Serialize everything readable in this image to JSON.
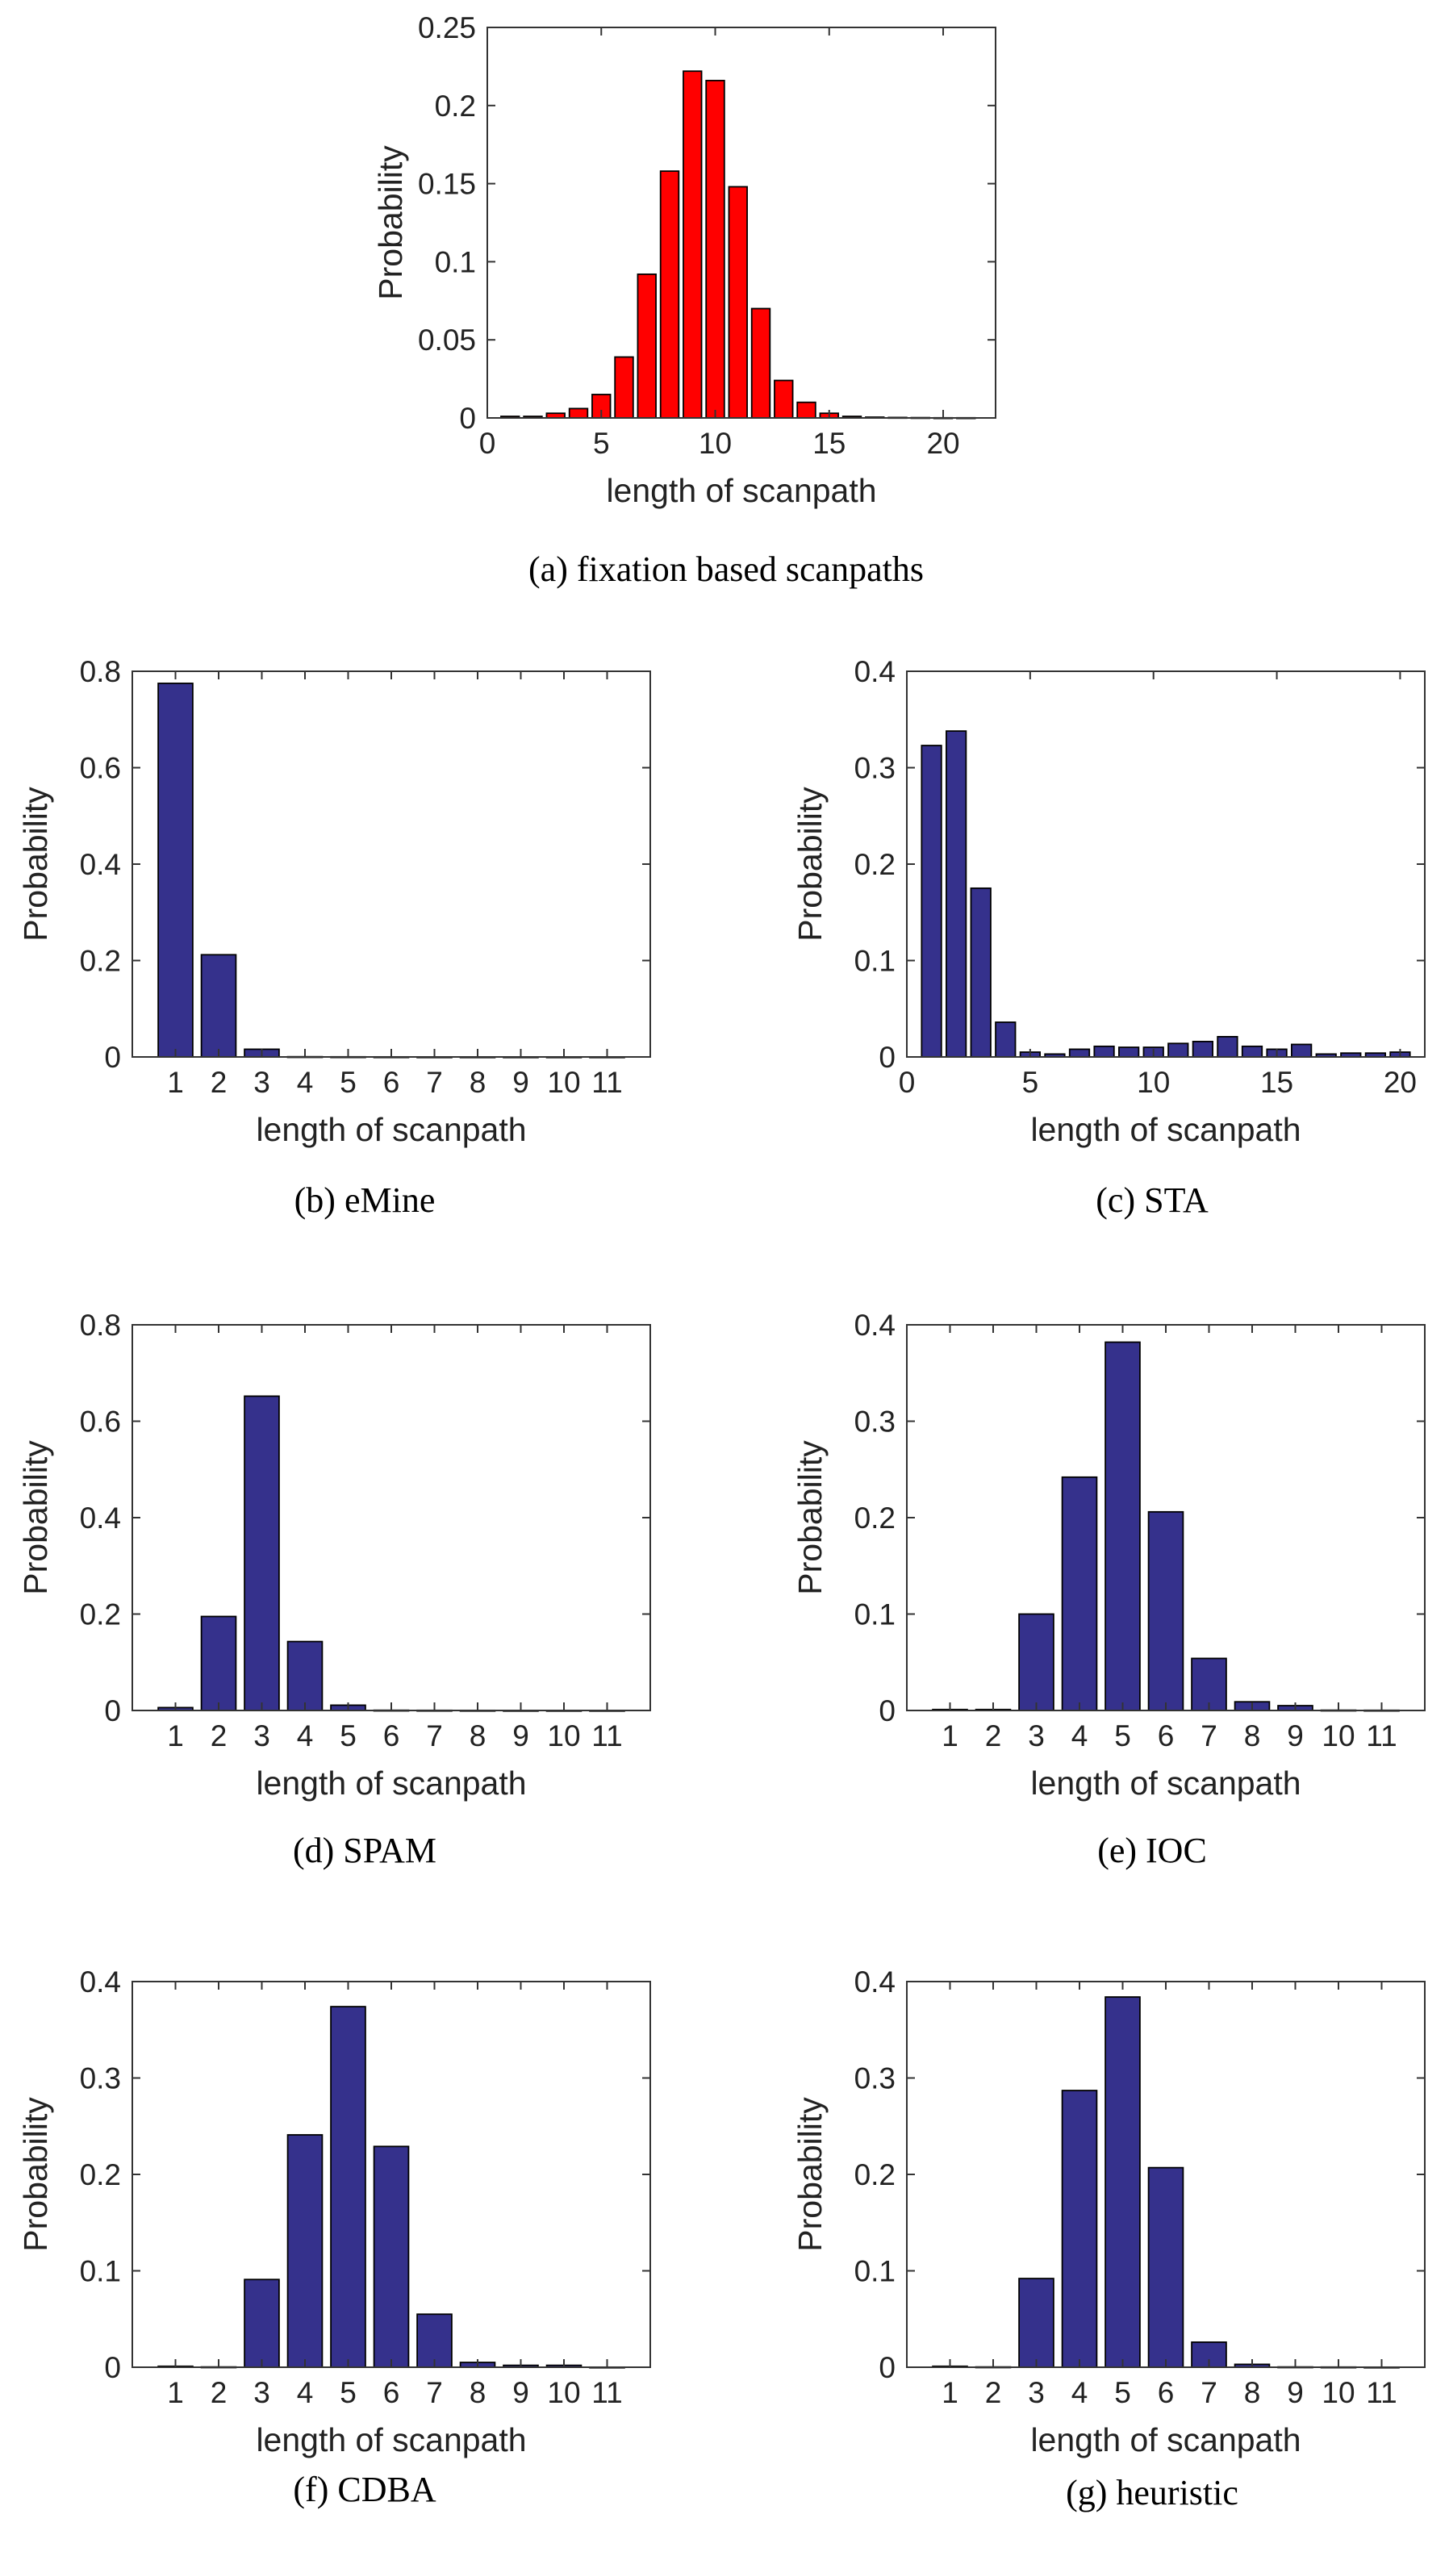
{
  "colors": {
    "red": "#ff0000",
    "navy": "#35318c",
    "edge": "#000000",
    "axis": "#333333"
  },
  "chart_data": [
    {
      "id": "a",
      "type": "bar",
      "caption": "(a) fixation based scanpaths",
      "xlabel": "length of scanpath",
      "ylabel": "Probability",
      "xlim": [
        0,
        22.3
      ],
      "ylim": [
        0,
        0.25
      ],
      "xticks": [
        0,
        5,
        10,
        15,
        20
      ],
      "yticks": [
        0,
        0.05,
        0.1,
        0.15,
        0.2,
        0.25
      ],
      "ytick_labels": [
        "0",
        "0.05",
        "0.1",
        "0.15",
        "0.2",
        "0.25"
      ],
      "bar_width": 0.8,
      "color": "red",
      "x": [
        1,
        2,
        3,
        4,
        5,
        6,
        7,
        8,
        9,
        10,
        11,
        12,
        13,
        14,
        15,
        16,
        17,
        18,
        19,
        20,
        21
      ],
      "values": [
        0.001,
        0.001,
        0.003,
        0.006,
        0.015,
        0.039,
        0.092,
        0.158,
        0.222,
        0.216,
        0.148,
        0.07,
        0.024,
        0.01,
        0.003,
        0.001,
        0.0005,
        0.0003,
        0.0002,
        0.0001,
        0.0001
      ]
    },
    {
      "id": "b",
      "type": "bar",
      "caption": "(b) eMine",
      "xlabel": "length of scanpath",
      "ylabel": "Probability",
      "xlim": [
        0,
        12
      ],
      "ylim": [
        0,
        0.8
      ],
      "xticks": [
        1,
        2,
        3,
        4,
        5,
        6,
        7,
        8,
        9,
        10,
        11
      ],
      "yticks": [
        0,
        0.2,
        0.4,
        0.6,
        0.8
      ],
      "ytick_labels": [
        "0",
        "0.2",
        "0.4",
        "0.6",
        "0.8"
      ],
      "bar_width": 0.8,
      "color": "navy",
      "x": [
        1,
        2,
        3,
        4,
        5,
        6,
        7,
        8,
        9,
        10,
        11
      ],
      "values": [
        0.775,
        0.212,
        0.016,
        0.0005,
        0.0003,
        0.0002,
        0.0001,
        0.0001,
        0.0001,
        0.0001,
        0.0001
      ]
    },
    {
      "id": "c",
      "type": "bar",
      "caption": "(c) STA",
      "xlabel": "length of scanpath",
      "ylabel": "Probability",
      "xlim": [
        0,
        21
      ],
      "ylim": [
        0,
        0.4
      ],
      "xticks": [
        0,
        5,
        10,
        15,
        20
      ],
      "yticks": [
        0,
        0.1,
        0.2,
        0.3,
        0.4
      ],
      "ytick_labels": [
        "0",
        "0.1",
        "0.2",
        "0.3",
        "0.4"
      ],
      "bar_width": 0.8,
      "color": "navy",
      "x": [
        1,
        2,
        3,
        4,
        5,
        6,
        7,
        8,
        9,
        10,
        11,
        12,
        13,
        14,
        15,
        16,
        17,
        18,
        19,
        20
      ],
      "values": [
        0.323,
        0.338,
        0.175,
        0.036,
        0.005,
        0.003,
        0.008,
        0.011,
        0.01,
        0.01,
        0.014,
        0.016,
        0.021,
        0.011,
        0.008,
        0.013,
        0.003,
        0.004,
        0.004,
        0.005
      ]
    },
    {
      "id": "d",
      "type": "bar",
      "caption": "(d) SPAM",
      "xlabel": "length of scanpath",
      "ylabel": "Probability",
      "xlim": [
        0,
        12
      ],
      "ylim": [
        0,
        0.8
      ],
      "xticks": [
        1,
        2,
        3,
        4,
        5,
        6,
        7,
        8,
        9,
        10,
        11
      ],
      "yticks": [
        0,
        0.2,
        0.4,
        0.6,
        0.8
      ],
      "ytick_labels": [
        "0",
        "0.2",
        "0.4",
        "0.6",
        "0.8"
      ],
      "bar_width": 0.8,
      "color": "navy",
      "x": [
        1,
        2,
        3,
        4,
        5,
        6,
        7,
        8,
        9,
        10,
        11
      ],
      "values": [
        0.006,
        0.195,
        0.652,
        0.143,
        0.011,
        0.0005,
        0.0003,
        0.0002,
        0.0001,
        0.0001,
        0.0001
      ]
    },
    {
      "id": "e",
      "type": "bar",
      "caption": "(e) IOC",
      "xlabel": "length of scanpath",
      "ylabel": "Probability",
      "xlim": [
        0,
        12
      ],
      "ylim": [
        0,
        0.4
      ],
      "xticks": [
        1,
        2,
        3,
        4,
        5,
        6,
        7,
        8,
        9,
        10,
        11
      ],
      "yticks": [
        0,
        0.1,
        0.2,
        0.3,
        0.4
      ],
      "ytick_labels": [
        "0",
        "0.1",
        "0.2",
        "0.3",
        "0.4"
      ],
      "bar_width": 0.8,
      "color": "navy",
      "x": [
        1,
        2,
        3,
        4,
        5,
        6,
        7,
        8,
        9,
        10,
        11
      ],
      "values": [
        0.001,
        0.001,
        0.1,
        0.242,
        0.382,
        0.206,
        0.054,
        0.009,
        0.005,
        0.0003,
        0.0002
      ]
    },
    {
      "id": "f",
      "type": "bar",
      "caption": "(f) CDBA",
      "xlabel": "length of scanpath",
      "ylabel": "Probability",
      "xlim": [
        0,
        12
      ],
      "ylim": [
        0,
        0.4
      ],
      "xticks": [
        1,
        2,
        3,
        4,
        5,
        6,
        7,
        8,
        9,
        10,
        11
      ],
      "yticks": [
        0,
        0.1,
        0.2,
        0.3,
        0.4
      ],
      "ytick_labels": [
        "0",
        "0.1",
        "0.2",
        "0.3",
        "0.4"
      ],
      "bar_width": 0.8,
      "color": "navy",
      "x": [
        1,
        2,
        3,
        4,
        5,
        6,
        7,
        8,
        9,
        10,
        11
      ],
      "values": [
        0.001,
        0.0003,
        0.091,
        0.241,
        0.374,
        0.229,
        0.055,
        0.005,
        0.002,
        0.002,
        0.0001
      ]
    },
    {
      "id": "g",
      "type": "bar",
      "caption": "(g) heuristic",
      "xlabel": "length of scanpath",
      "ylabel": "Probability",
      "xlim": [
        0,
        12
      ],
      "ylim": [
        0,
        0.4
      ],
      "xticks": [
        1,
        2,
        3,
        4,
        5,
        6,
        7,
        8,
        9,
        10,
        11
      ],
      "yticks": [
        0,
        0.1,
        0.2,
        0.3,
        0.4
      ],
      "ytick_labels": [
        "0",
        "0.1",
        "0.2",
        "0.3",
        "0.4"
      ],
      "bar_width": 0.8,
      "color": "navy",
      "x": [
        1,
        2,
        3,
        4,
        5,
        6,
        7,
        8,
        9,
        10,
        11
      ],
      "values": [
        0.001,
        0.0003,
        0.092,
        0.287,
        0.384,
        0.207,
        0.026,
        0.003,
        0.0003,
        0.0002,
        0.0001
      ]
    }
  ]
}
